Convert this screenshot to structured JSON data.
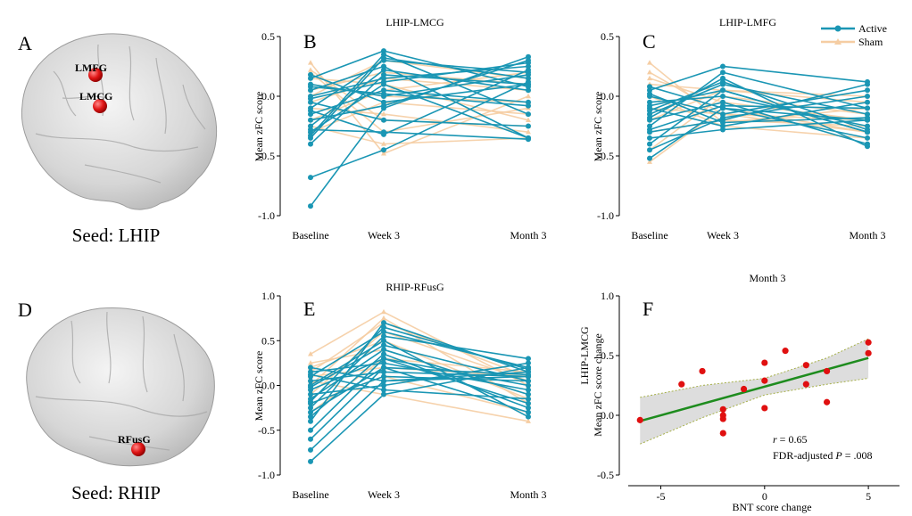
{
  "figure": {
    "brains": [
      {
        "letter": "A",
        "seed": "Seed: LHIP",
        "regions": [
          "LMFG",
          "LMCG"
        ]
      },
      {
        "letter": "D",
        "seed": "Seed: RHIP",
        "regions": [
          "RFusG"
        ]
      }
    ],
    "legend": {
      "active": "Active",
      "sham": "Sham"
    },
    "colors": {
      "active": "#1a96b4",
      "sham": "#f5cda3",
      "fit": "#1e8c1e",
      "band": "#d9d9d9",
      "band_edge": "#a6b04a",
      "points": "#e01010",
      "brain": "#cfcfcf"
    }
  },
  "chart_data": [
    {
      "type": "line",
      "panel": "B",
      "title": "LHIP-LMCG",
      "ylabel": "Mean zFC score",
      "ylim": [
        -1.0,
        0.5
      ],
      "yticks": [
        -1.0,
        -0.5,
        0.0,
        0.5
      ],
      "ytick_labels": [
        "-1.0",
        "-0.5",
        "0.0",
        "0.5"
      ],
      "categories": [
        "Baseline",
        "Week 3",
        "Month 3"
      ],
      "x": [
        0,
        1,
        3
      ],
      "series": [
        {
          "name": "Active",
          "subjects": [
            [
              -0.92,
              -0.1,
              0.33
            ],
            [
              -0.68,
              -0.45,
              0.12
            ],
            [
              -0.4,
              0.18,
              0.1
            ],
            [
              -0.35,
              0.32,
              0.15
            ],
            [
              -0.3,
              0.1,
              -0.35
            ],
            [
              -0.25,
              0.22,
              0.05
            ],
            [
              -0.2,
              -0.08,
              0.3
            ],
            [
              -0.15,
              0.05,
              -0.05
            ],
            [
              -0.1,
              0.3,
              0.2
            ],
            [
              -0.05,
              -0.2,
              -0.25
            ],
            [
              0.0,
              0.15,
              0.25
            ],
            [
              0.05,
              0.25,
              -0.35
            ],
            [
              0.15,
              0.38,
              0.08
            ],
            [
              0.1,
              0.0,
              0.18
            ],
            [
              -0.28,
              -0.3,
              -0.36
            ],
            [
              -0.02,
              0.12,
              0.28
            ],
            [
              -0.33,
              0.35,
              -0.15
            ],
            [
              0.18,
              -0.05,
              0.1
            ],
            [
              -0.12,
              -0.32,
              0.22
            ],
            [
              0.08,
              0.02,
              -0.08
            ]
          ]
        },
        {
          "name": "Sham",
          "subjects": [
            [
              0.28,
              -0.48,
              0.0
            ],
            [
              0.2,
              -0.3,
              -0.1
            ],
            [
              0.15,
              0.1,
              -0.2
            ],
            [
              0.05,
              0.2,
              0.1
            ],
            [
              -0.1,
              -0.15,
              -0.3
            ],
            [
              -0.2,
              0.05,
              0.2
            ],
            [
              -0.3,
              -0.05,
              -0.15
            ],
            [
              0.1,
              0.0,
              -0.05
            ],
            [
              -0.05,
              0.15,
              0.05
            ],
            [
              0.22,
              -0.2,
              -0.25
            ],
            [
              -0.25,
              -0.4,
              -0.35
            ],
            [
              0.0,
              0.3,
              0.15
            ]
          ]
        }
      ]
    },
    {
      "type": "line",
      "panel": "C",
      "title": "LHIP-LMFG",
      "ylabel": "Mean zFC score",
      "ylim": [
        -1.0,
        0.5
      ],
      "yticks": [
        -1.0,
        -0.5,
        0.0,
        0.5
      ],
      "ytick_labels": [
        "-1.0",
        "-0.5",
        "0.0",
        "0.5"
      ],
      "categories": [
        "Baseline",
        "Week 3",
        "Month 3"
      ],
      "x": [
        0,
        1,
        3
      ],
      "series": [
        {
          "name": "Active",
          "subjects": [
            [
              -0.52,
              -0.1,
              -0.2
            ],
            [
              -0.4,
              0.05,
              -0.3
            ],
            [
              -0.3,
              -0.2,
              0.1
            ],
            [
              -0.25,
              0.2,
              -0.1
            ],
            [
              -0.2,
              -0.05,
              -0.4
            ],
            [
              -0.15,
              0.1,
              -0.15
            ],
            [
              -0.1,
              -0.25,
              -0.05
            ],
            [
              -0.05,
              0.0,
              -0.25
            ],
            [
              0.0,
              -0.15,
              0.05
            ],
            [
              0.05,
              0.25,
              0.12
            ],
            [
              0.08,
              -0.1,
              -0.35
            ],
            [
              -0.35,
              -0.28,
              -0.2
            ],
            [
              -0.18,
              0.15,
              -0.42
            ],
            [
              -0.28,
              -0.08,
              -0.1
            ],
            [
              -0.08,
              0.05,
              -0.3
            ],
            [
              -0.45,
              -0.18,
              0.0
            ],
            [
              0.02,
              -0.22,
              -0.18
            ],
            [
              -0.12,
              0.12,
              -0.28
            ]
          ]
        },
        {
          "name": "Sham",
          "subjects": [
            [
              0.28,
              -0.22,
              -0.1
            ],
            [
              0.2,
              -0.15,
              -0.2
            ],
            [
              -0.55,
              -0.1,
              -0.3
            ],
            [
              -0.45,
              0.0,
              -0.15
            ],
            [
              -0.3,
              -0.2,
              -0.25
            ],
            [
              0.1,
              0.05,
              0.0
            ],
            [
              -0.1,
              -0.15,
              -0.3
            ],
            [
              0.0,
              -0.25,
              -0.35
            ],
            [
              -0.2,
              0.05,
              -0.05
            ],
            [
              0.15,
              -0.05,
              -0.2
            ]
          ]
        }
      ]
    },
    {
      "type": "line",
      "panel": "E",
      "title": "RHIP-RFusG",
      "ylabel": "Mean zFC score",
      "ylim": [
        -1.0,
        1.0
      ],
      "yticks": [
        -1.0,
        -0.5,
        0.0,
        0.5,
        1.0
      ],
      "ytick_labels": [
        "-1.0",
        "-0.5",
        "0.0",
        "0.5",
        "1.0"
      ],
      "categories": [
        "Baseline",
        "Week 3",
        "Month 3"
      ],
      "x": [
        0,
        1,
        3
      ],
      "series": [
        {
          "name": "Active",
          "subjects": [
            [
              -0.85,
              -0.1,
              0.2
            ],
            [
              -0.72,
              0.05,
              0.1
            ],
            [
              -0.5,
              0.3,
              -0.2
            ],
            [
              -0.4,
              0.7,
              0.15
            ],
            [
              -0.3,
              0.2,
              -0.3
            ],
            [
              -0.25,
              0.55,
              0.3
            ],
            [
              -0.2,
              0.1,
              0.05
            ],
            [
              -0.15,
              0.4,
              -0.1
            ],
            [
              -0.1,
              0.0,
              0.25
            ],
            [
              -0.05,
              0.3,
              0.0
            ],
            [
              0.0,
              0.5,
              -0.35
            ],
            [
              0.05,
              0.15,
              0.1
            ],
            [
              0.1,
              0.6,
              0.2
            ],
            [
              0.15,
              0.25,
              -0.05
            ],
            [
              0.2,
              0.05,
              0.15
            ],
            [
              -0.35,
              0.35,
              -0.25
            ],
            [
              -0.6,
              0.2,
              0.12
            ],
            [
              -0.02,
              0.45,
              0.05
            ],
            [
              0.12,
              -0.05,
              -0.15
            ],
            [
              -0.18,
              0.65,
              0.18
            ]
          ]
        },
        {
          "name": "Sham",
          "subjects": [
            [
              0.35,
              0.82,
              0.0
            ],
            [
              0.25,
              0.4,
              -0.1
            ],
            [
              0.1,
              0.2,
              0.1
            ],
            [
              0.0,
              0.75,
              -0.2
            ],
            [
              -0.1,
              0.6,
              0.05
            ],
            [
              -0.2,
              0.1,
              -0.3
            ],
            [
              0.2,
              0.5,
              -0.15
            ],
            [
              -0.3,
              0.3,
              0.15
            ],
            [
              0.05,
              -0.1,
              -0.4
            ],
            [
              0.15,
              0.7,
              0.1
            ]
          ]
        }
      ]
    },
    {
      "type": "scatter",
      "panel": "F",
      "title": "Month 3",
      "xlabel": "BNT score change",
      "ylabel": "Mean zFC score change",
      "ylabel_top": "LHIP-LMCG",
      "xlim": [
        -7,
        6.5
      ],
      "ylim": [
        -0.5,
        1.0
      ],
      "xticks": [
        -5,
        0,
        5
      ],
      "xtick_labels": [
        "-5",
        "0",
        "5"
      ],
      "yticks": [
        -0.5,
        0.0,
        0.5,
        1.0
      ],
      "ytick_labels": [
        "-0.5",
        "0.0",
        "0.5",
        "1.0"
      ],
      "points": [
        [
          -6,
          -0.04
        ],
        [
          -4,
          0.26
        ],
        [
          -3,
          0.37
        ],
        [
          -2,
          0.05
        ],
        [
          -2,
          0.0
        ],
        [
          -2,
          -0.03
        ],
        [
          -2,
          -0.15
        ],
        [
          -1,
          0.22
        ],
        [
          0,
          0.44
        ],
        [
          0,
          0.29
        ],
        [
          0,
          0.06
        ],
        [
          1,
          0.54
        ],
        [
          2,
          0.42
        ],
        [
          2,
          0.26
        ],
        [
          3,
          0.37
        ],
        [
          3,
          0.11
        ],
        [
          5,
          0.61
        ],
        [
          5,
          0.52
        ]
      ],
      "fit": {
        "slope": 0.048,
        "intercept": 0.24
      },
      "band": {
        "x": [
          -6,
          -3,
          0,
          3,
          5
        ],
        "lower": [
          -0.24,
          -0.02,
          0.17,
          0.26,
          0.31
        ],
        "upper": [
          0.15,
          0.25,
          0.31,
          0.48,
          0.64
        ]
      },
      "annotation": {
        "r_label": "r",
        "r_value": " = 0.65",
        "p_prefix": "FDR-adjusted ",
        "p_label": "P",
        "p_value": " = .008"
      }
    }
  ]
}
